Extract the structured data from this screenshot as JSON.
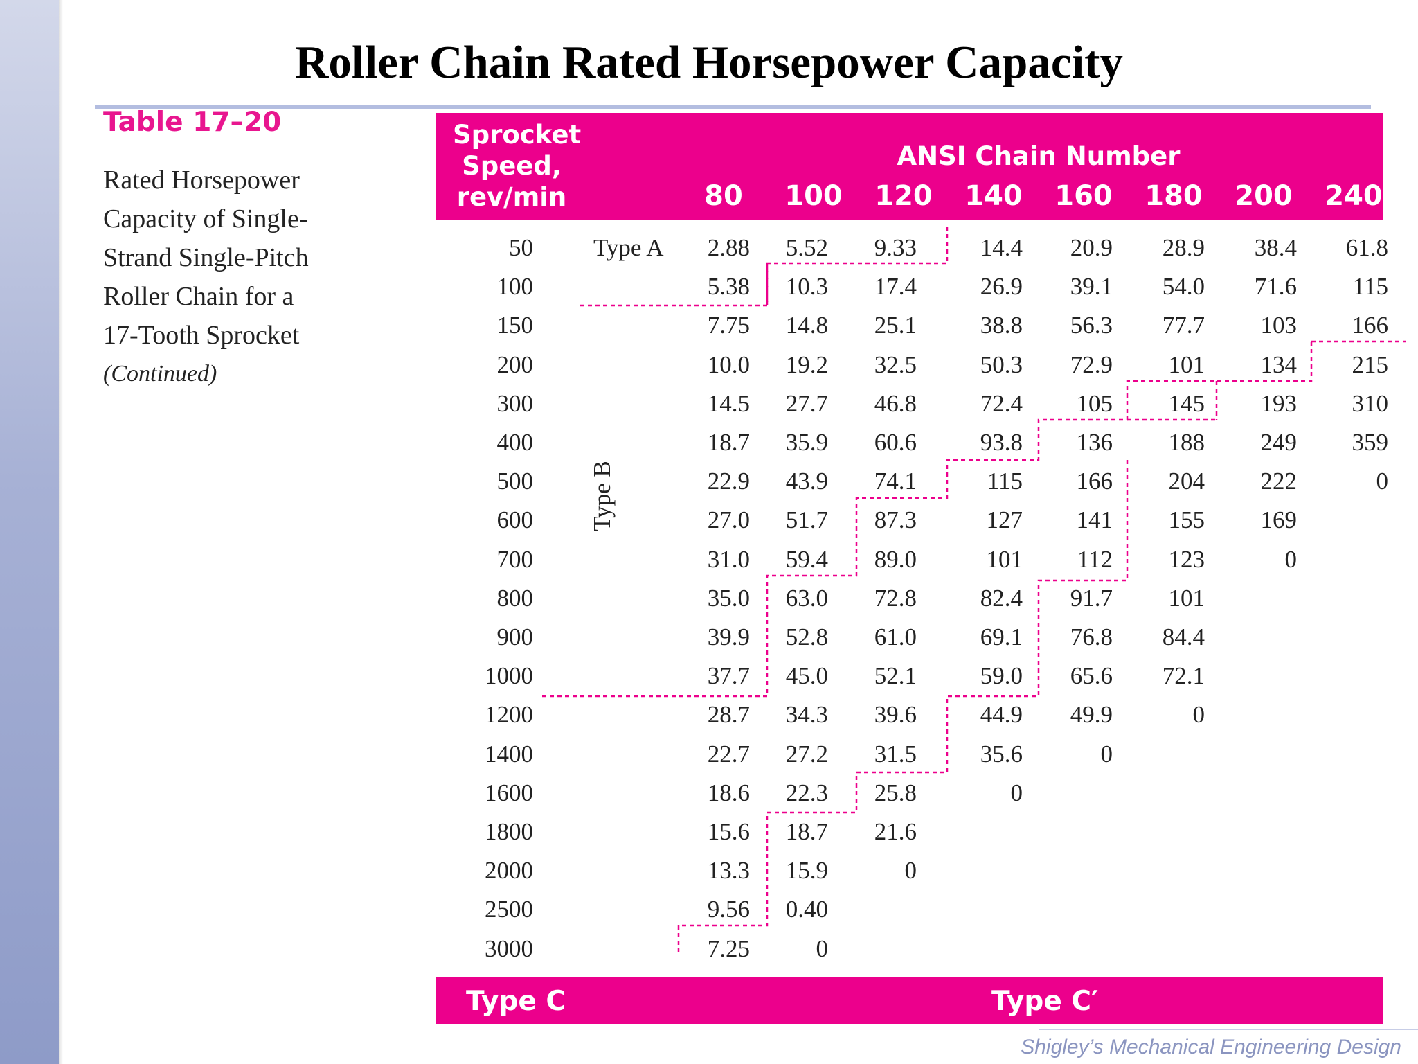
{
  "title": "Roller Chain Rated Horsepower Capacity",
  "table_label": "Table 17–20",
  "caption_lines": [
    "Rated Horsepower",
    "Capacity of Single-",
    "Strand Single-Pitch",
    "Roller Chain for a",
    "17-Tooth Sprocket"
  ],
  "caption_continued": "(Continued)",
  "header": {
    "speed_label_lines": [
      "Sprocket",
      "Speed,",
      "rev/min"
    ],
    "ansi_label": "ANSI Chain Number",
    "chain_numbers": [
      "80",
      "100",
      "120",
      "140",
      "160",
      "180",
      "200",
      "240"
    ]
  },
  "type_a_label": "Type A",
  "type_b_label": "Type B",
  "footer": {
    "type_c": "Type C",
    "type_c_prime": "Type C′"
  },
  "rows": [
    {
      "speed": "50",
      "values": [
        "2.88",
        "5.52",
        "9.33",
        "14.4",
        "20.9",
        "28.9",
        "38.4",
        "61.8"
      ]
    },
    {
      "speed": "100",
      "values": [
        "5.38",
        "10.3",
        "17.4",
        "26.9",
        "39.1",
        "54.0",
        "71.6",
        "115"
      ]
    },
    {
      "speed": "150",
      "values": [
        "7.75",
        "14.8",
        "25.1",
        "38.8",
        "56.3",
        "77.7",
        "103",
        "166"
      ]
    },
    {
      "speed": "200",
      "values": [
        "10.0",
        "19.2",
        "32.5",
        "50.3",
        "72.9",
        "101",
        "134",
        "215"
      ]
    },
    {
      "speed": "300",
      "values": [
        "14.5",
        "27.7",
        "46.8",
        "72.4",
        "105",
        "145",
        "193",
        "310"
      ]
    },
    {
      "speed": "400",
      "values": [
        "18.7",
        "35.9",
        "60.6",
        "93.8",
        "136",
        "188",
        "249",
        "359"
      ]
    },
    {
      "speed": "500",
      "values": [
        "22.9",
        "43.9",
        "74.1",
        "115",
        "166",
        "204",
        "222",
        "0"
      ]
    },
    {
      "speed": "600",
      "values": [
        "27.0",
        "51.7",
        "87.3",
        "127",
        "141",
        "155",
        "169",
        ""
      ]
    },
    {
      "speed": "700",
      "values": [
        "31.0",
        "59.4",
        "89.0",
        "101",
        "112",
        "123",
        "0",
        ""
      ]
    },
    {
      "speed": "800",
      "values": [
        "35.0",
        "63.0",
        "72.8",
        "82.4",
        "91.7",
        "101",
        "",
        ""
      ]
    },
    {
      "speed": "900",
      "values": [
        "39.9",
        "52.8",
        "61.0",
        "69.1",
        "76.8",
        "84.4",
        "",
        ""
      ]
    },
    {
      "speed": "1000",
      "values": [
        "37.7",
        "45.0",
        "52.1",
        "59.0",
        "65.6",
        "72.1",
        "",
        ""
      ]
    },
    {
      "speed": "1200",
      "values": [
        "28.7",
        "34.3",
        "39.6",
        "44.9",
        "49.9",
        "0",
        "",
        ""
      ]
    },
    {
      "speed": "1400",
      "values": [
        "22.7",
        "27.2",
        "31.5",
        "35.6",
        "0",
        "",
        "",
        ""
      ]
    },
    {
      "speed": "1600",
      "values": [
        "18.6",
        "22.3",
        "25.8",
        "0",
        "",
        "",
        "",
        ""
      ]
    },
    {
      "speed": "1800",
      "values": [
        "15.6",
        "18.7",
        "21.6",
        "",
        "",
        "",
        "",
        ""
      ]
    },
    {
      "speed": "2000",
      "values": [
        "13.3",
        "15.9",
        "0",
        "",
        "",
        "",
        "",
        ""
      ]
    },
    {
      "speed": "2500",
      "values": [
        "9.56",
        "0.40",
        "",
        "",
        "",
        "",
        "",
        ""
      ]
    },
    {
      "speed": "3000",
      "values": [
        "7.25",
        "0",
        "",
        "",
        "",
        "",
        "",
        ""
      ]
    }
  ],
  "boundary_color": "#ec008c",
  "footer_note": "Shigley’s Mechanical Engineering Design"
}
